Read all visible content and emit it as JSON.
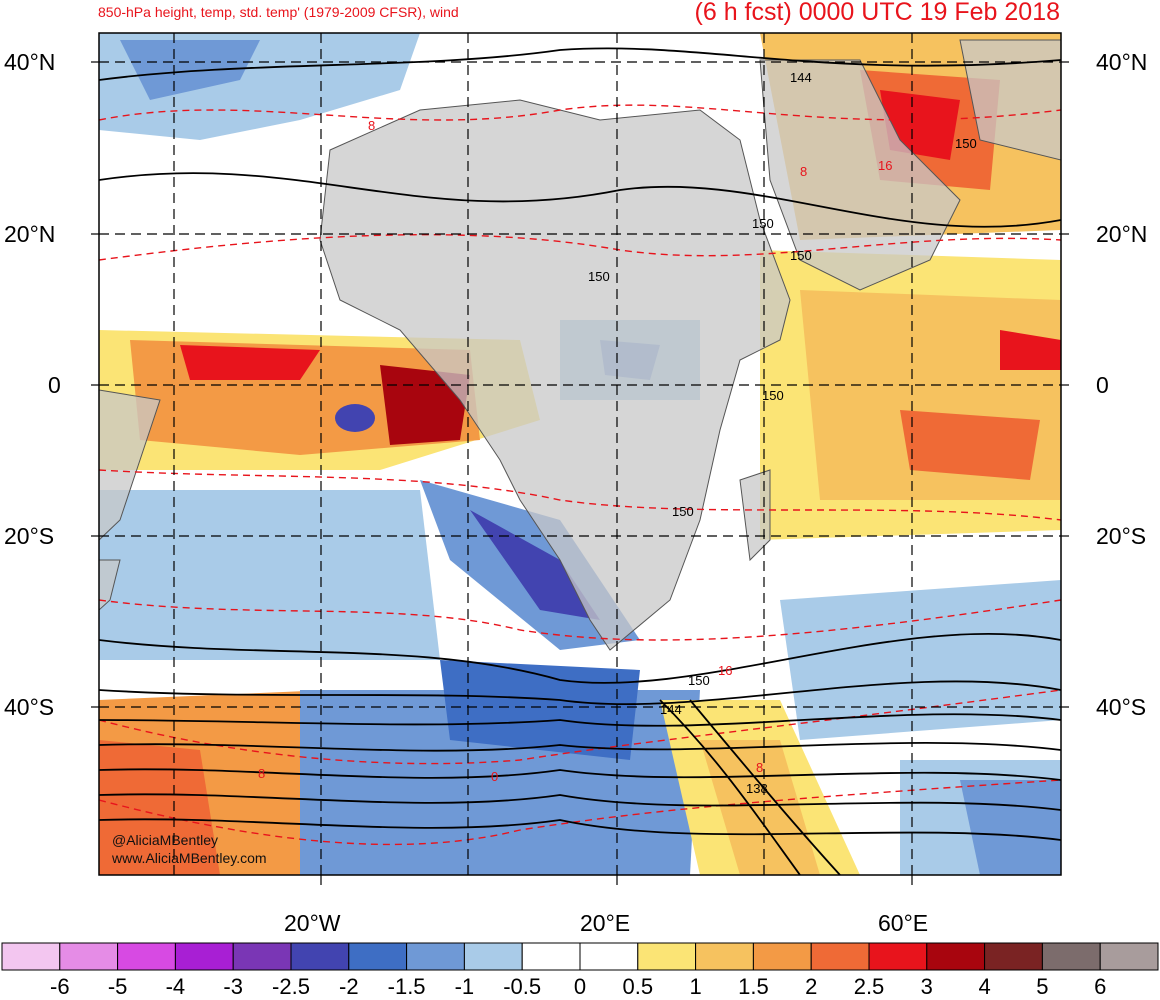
{
  "header": {
    "left_title": "850-hPa height, temp, std. temp' (1979-2009 CFSR), wind",
    "right_title": "(6 h fcst) 0000 UTC 19 Feb 2018"
  },
  "axes": {
    "lat_labels": [
      "40°N",
      "20°N",
      "0",
      "20°S",
      "40°S"
    ],
    "lon_labels": [
      "20°W",
      "20°E",
      "60°E"
    ]
  },
  "contour_labels": [
    "144",
    "150",
    "8",
    "16",
    "150",
    "150",
    "150",
    "150",
    "150",
    "150",
    "16",
    "144",
    "8",
    "138",
    "8",
    "0"
  ],
  "credits": {
    "handle": "@AliciaMBentley",
    "site": "www.AliciaMBentley.com"
  },
  "colorbar": {
    "colors": [
      "#f3c6f0",
      "#e58ce6",
      "#d74ae3",
      "#a81fd4",
      "#7a36b5",
      "#4244b0",
      "#3e6ec4",
      "#6f99d6",
      "#a9cbe8",
      "#ffffff",
      "#ffffff",
      "#fbe475",
      "#f6c25f",
      "#f39a45",
      "#ef6a36",
      "#e8141c",
      "#a8050e",
      "#7a2323",
      "#7c6c6c",
      "#a89c9c"
    ],
    "tick_labels": [
      "-6",
      "-5",
      "-4",
      "-3",
      "-2.5",
      "-2",
      "-1.5",
      "-1",
      "-0.5",
      "0",
      "0.5",
      "1",
      "1.5",
      "2",
      "2.5",
      "3",
      "4",
      "5",
      "6"
    ]
  },
  "colors": {
    "title_red": "#e8141c",
    "land_gray": "#c8c8c8",
    "height_contour": "#000000",
    "temp_contour": "#e8141c"
  }
}
